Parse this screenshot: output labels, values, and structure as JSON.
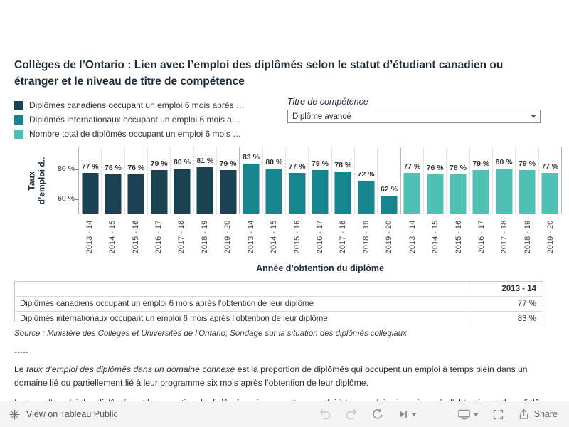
{
  "header": {
    "title": "Collèges de l’Ontario : Lien avec l’emploi des diplômés selon le statut d’étudiant canadien ou étranger et le niveau de titre de compétence"
  },
  "legend": {
    "items": [
      {
        "label": "Diplômés canadiens occupant un emploi 6 mois après …",
        "color": "#1b4252"
      },
      {
        "label": "Diplômés internationaux occupant un emploi 6 mois a…",
        "color": "#17858d"
      },
      {
        "label": "Nombre total de diplômés occupant un emploi 6 mois …",
        "color": "#4fc0b3"
      }
    ]
  },
  "filter": {
    "label": "Titre de compétence",
    "value": "Diplôme avancé"
  },
  "chart_data": {
    "type": "bar",
    "title": "",
    "xlabel": "Année d’obtention du diplôme",
    "ylabel": "Taux d’emploi d..",
    "ylim": [
      50,
      95
    ],
    "yticks": [
      {
        "value": 60,
        "label": "60 %"
      },
      {
        "value": 80,
        "label": "80 %"
      }
    ],
    "grid": "dotted column dividers, three panes",
    "legend_position": "top-left",
    "value_suffix": " %",
    "categories": [
      "2013 - 14",
      "2014 - 15",
      "2015 - 16",
      "2016 - 17",
      "2017 - 18",
      "2018 - 19",
      "2019 - 20"
    ],
    "series": [
      {
        "name": "Diplômés canadiens occupant un emploi 6 mois après l’obtention de leur diplôme",
        "color": "#1b4252",
        "values": [
          77,
          76,
          76,
          79,
          80,
          81,
          79
        ]
      },
      {
        "name": "Diplômés internationaux occupant un emploi 6 mois après l’obtention de leur diplôme",
        "color": "#17858d",
        "values": [
          83,
          80,
          77,
          79,
          78,
          72,
          62
        ]
      },
      {
        "name": "Nombre total de diplômés occupant un emploi 6 mois après l’obtention de leur diplôme",
        "color": "#4fc0b3",
        "values": [
          77,
          76,
          76,
          79,
          80,
          79,
          77
        ]
      }
    ]
  },
  "table": {
    "columns": [
      "",
      "2013 - 14"
    ],
    "rows": [
      {
        "label": "Diplômés canadiens occupant un emploi 6 mois après l’obtention de leur diplôme",
        "value": "77 %"
      },
      {
        "label": "Diplômés internationaux occupant un emploi 6 mois après l’obtention de leur diplôme",
        "value": "83 %"
      }
    ]
  },
  "notes": {
    "source": "Source : Ministère des Collèges et Universités de l'Ontario, Sondage sur la situation des diplômés collégiaux",
    "separator": "-----",
    "para1_prefix": "Le ",
    "para1_italic": "taux d’emploi des diplômés dans un domaine connexe",
    "para1_rest": " est la proportion de diplômés qui occupent un emploi à temps plein dans un domaine lié ou partiellement lié à leur programme six mois après l’obtention de leur diplôme.",
    "para2_prefix": "Le ",
    "para2_italic": "taux d’emploi des diplômés",
    "para2_rest": " est la proportion de diplômés qui occupent un emploi à temps plein six mois après l’obtention de leur diplôme."
  },
  "toolbar": {
    "view_label": "View on Tableau Public",
    "share_label": "Share"
  }
}
